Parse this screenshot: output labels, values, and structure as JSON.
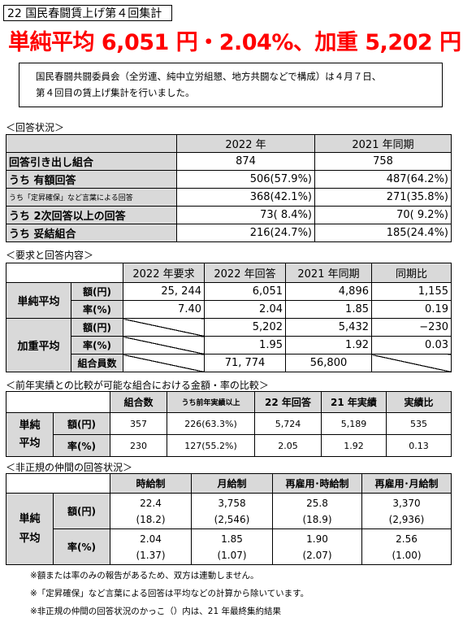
{
  "header_tag": "22 国民春闘賃上げ第４回集計",
  "headline": "単純平均 6,051 円・2.04%、加重 5,202 円",
  "intro": {
    "line1": "国民春闘共闘委員会（全労連、純中立労組懇、地方共闘などで構成）は４月７日、",
    "line2": "第４回目の賃上げ集計を行いました。"
  },
  "section1": {
    "title": "＜回答状況＞",
    "headers": [
      "",
      "2022 年",
      "2021 年同期"
    ],
    "rows": [
      {
        "label": "回答引き出し組合",
        "v2022": "874",
        "v2021": "758"
      },
      {
        "label": "うち  有額回答",
        "v2022": "506(57.9%)",
        "v2021": "487(64.2%)"
      },
      {
        "label": "うち「定昇確保」など言葉による回答",
        "v2022": "368(42.1%)",
        "v2021": "271(35.8%)"
      },
      {
        "label": "うち  2次回答以上の回答",
        "v2022": "73(  8.4%)",
        "v2021": "70(  9.2%)"
      },
      {
        "label": "うち  妥結組合",
        "v2022": "216(24.7%)",
        "v2021": "185(24.4%)"
      }
    ]
  },
  "section2": {
    "title": "＜要求と回答内容＞",
    "headers": [
      "2022 年要求",
      "2022 年回答",
      "2021 年同期",
      "同期比"
    ],
    "simple_label": "単純平均",
    "weighted_label": "加重平均",
    "amount_label": "額(円)",
    "rate_label": "率(%)",
    "members_label": "組合員数",
    "simple_amount": [
      "25, 244",
      "6,051",
      "4,896",
      "1,155"
    ],
    "simple_rate": [
      "7.40",
      "2.04",
      "1.85",
      "0.19"
    ],
    "weighted_amount": [
      "5,202",
      "5,432",
      "−230"
    ],
    "weighted_rate": [
      "1.95",
      "1.92",
      "0.03"
    ],
    "members": [
      "71, 774",
      "56,800"
    ]
  },
  "section3": {
    "title": "＜前年実績との比較が可能な組合における金額・率の比較＞",
    "headers": [
      "組合数",
      "うち前年実績以上",
      "22 年回答",
      "21 年実績",
      "実績比"
    ],
    "row_label_1": "単純",
    "row_label_2": "平均",
    "amount_label": "額(円)",
    "rate_label": "率(%)",
    "amount": [
      "357",
      "226(63.3%)",
      "5,724",
      "5,189",
      "535"
    ],
    "rate": [
      "230",
      "127(55.2%)",
      "2.05",
      "1.92",
      "0.13"
    ]
  },
  "section4": {
    "title": "＜非正規の仲間の回答状況＞",
    "headers": [
      "時給制",
      "月給制",
      "再雇用･時給制",
      "再雇用･月給制"
    ],
    "row_label_1": "単純",
    "row_label_2": "平均",
    "amount_label": "額(円)",
    "rate_label": "率(%)",
    "amount_top": [
      "22.4",
      "3,758",
      "25.8",
      "3,370"
    ],
    "amount_bottom": [
      "(18.2)",
      "(2,546)",
      "(18.9)",
      "(2,936)"
    ],
    "rate_top": [
      "2.04",
      "1.85",
      "1.90",
      "2.56"
    ],
    "rate_bottom": [
      "(1.37)",
      "(1.07)",
      "(2.07)",
      "(1.00)"
    ]
  },
  "notes": [
    "※額または率のみの報告があるため、双方は連動しません。",
    "※「定昇確保」など言葉による回答は平均などの計算から除いています。",
    "※非正規の仲間の回答状況のかっこ（）内は、21 年最終集約結果"
  ]
}
